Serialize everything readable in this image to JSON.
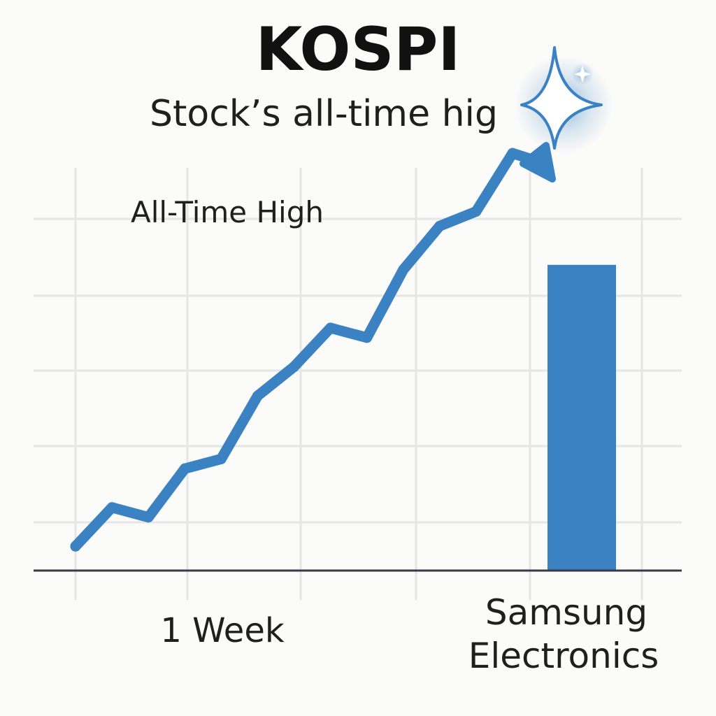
{
  "header": {
    "title": "KOSPI",
    "subtitle": "Stock’s all-time hig"
  },
  "colors": {
    "accent": "#3b82c2",
    "grid": "#e6e6e6",
    "axis": "#3a3a44",
    "text": "#1f1f1f"
  },
  "icons": {
    "peak_marker": "sparkle-star-icon"
  },
  "chart_data": [
    {
      "type": "line",
      "title": "",
      "xlabel": "",
      "ylabel": "",
      "annotation": "All-Time High",
      "x_tick_labels": [
        "1 Week"
      ],
      "series": [
        {
          "values": [
            5,
            13,
            11,
            21,
            23,
            36,
            42,
            50,
            48,
            62,
            71,
            74,
            86
          ]
        }
      ],
      "ylim": [
        0,
        100
      ],
      "grid": true,
      "legend": "none"
    },
    {
      "type": "bar",
      "categories": [
        "Samsung Electronics"
      ],
      "category_lines": [
        "Samsung",
        "Electronics"
      ],
      "values": [
        63
      ],
      "ylim": [
        0,
        100
      ]
    }
  ]
}
